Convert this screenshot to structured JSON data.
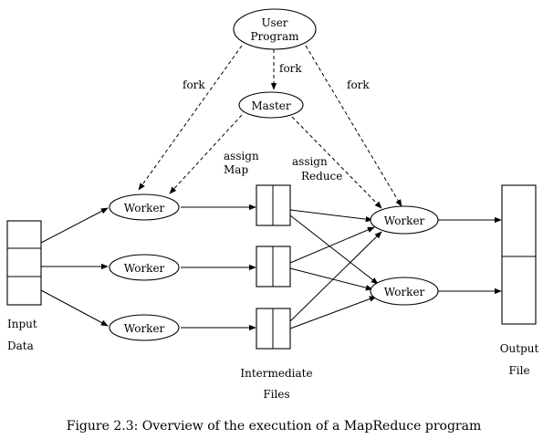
{
  "diagram": {
    "nodes": {
      "user_program": [
        "User",
        "Program"
      ],
      "master": "Master",
      "worker": "Worker",
      "input": [
        "Input",
        "Data"
      ],
      "intermediate": [
        "Intermediate",
        "Files"
      ],
      "output": [
        "Output",
        "File"
      ]
    },
    "edge_labels": {
      "fork": "fork",
      "assign_map": [
        "assign",
        "Map"
      ],
      "assign_reduce": [
        "assign",
        "Reduce"
      ]
    }
  },
  "caption": "Figure 2.3: Overview of the execution of a MapReduce program"
}
